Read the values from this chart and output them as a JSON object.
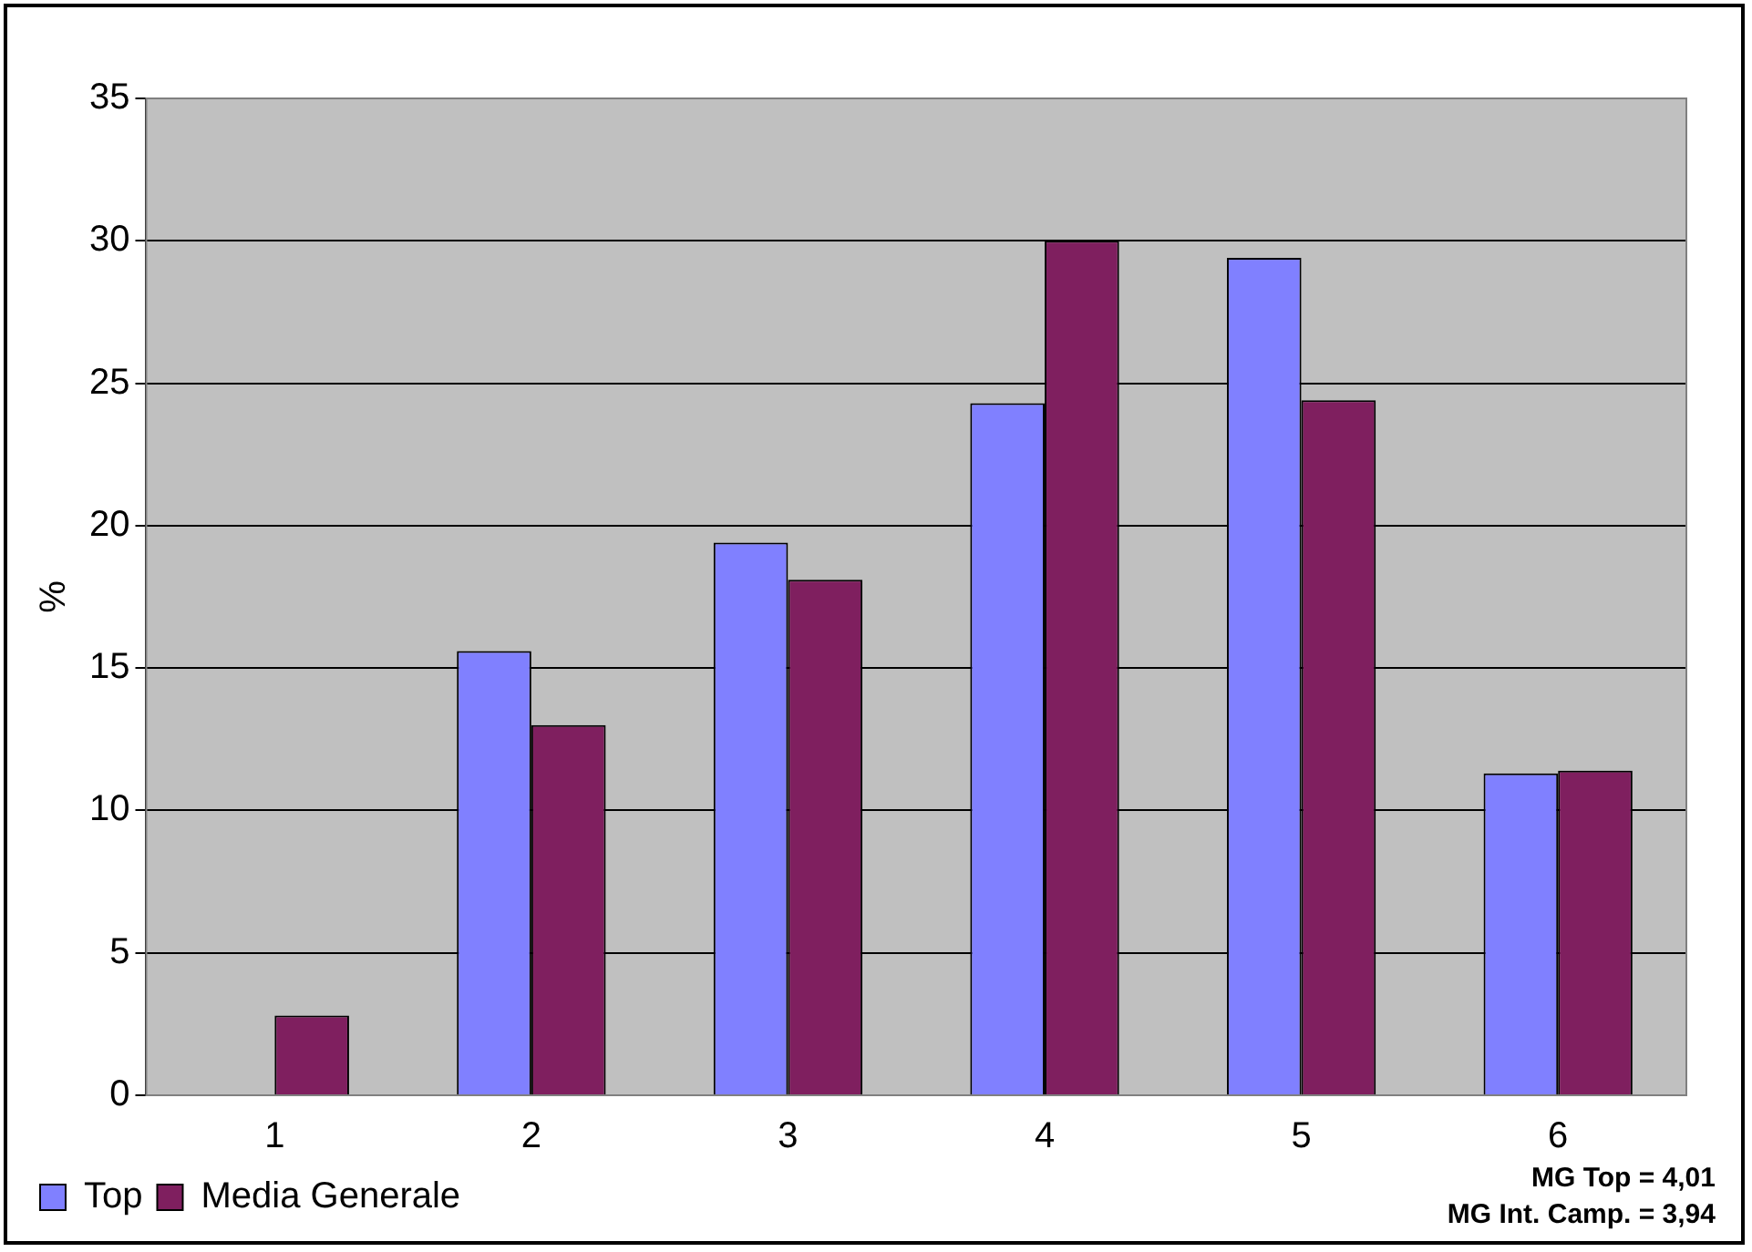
{
  "chart_data": {
    "type": "bar",
    "ylabel": "%",
    "categories": [
      "1",
      "2",
      "3",
      "4",
      "5",
      "6"
    ],
    "series": [
      {
        "name": "Top",
        "color": "#8080ff",
        "values": [
          0,
          15.6,
          19.4,
          24.3,
          29.4,
          11.3
        ]
      },
      {
        "name": "Media Generale",
        "color": "#7f1f5f",
        "values": [
          2.8,
          13.0,
          18.1,
          30.0,
          24.4,
          11.4
        ]
      }
    ],
    "ylim": [
      0,
      35
    ],
    "yticks": [
      0,
      5,
      10,
      15,
      20,
      25,
      30,
      35
    ],
    "grid": "y",
    "legend": "bottom left",
    "annotations": [
      "MG Top = 4,01",
      "MG Int. Camp. = 3,94"
    ]
  }
}
